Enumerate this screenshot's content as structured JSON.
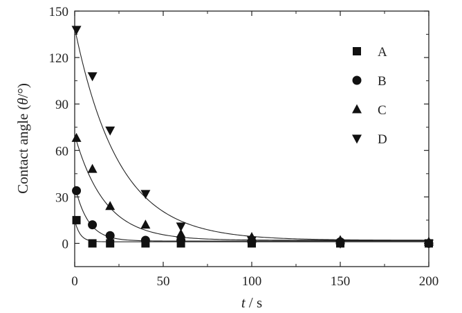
{
  "chart_data": {
    "type": "scatter",
    "title": "",
    "xlabel_italic": "t",
    "xlabel_unit": " / s",
    "ylabel_text": "Contact angle (",
    "ylabel_italic": "θ",
    "ylabel_unit": "/°)",
    "xlim": [
      0,
      200
    ],
    "ylim": [
      -15,
      150
    ],
    "xticks": [
      0,
      50,
      100,
      150,
      200
    ],
    "yticks": [
      0,
      30,
      60,
      90,
      120,
      150
    ],
    "grid": false,
    "legend_position": "top-right",
    "series": [
      {
        "name": "A",
        "marker": "square",
        "points": [
          [
            1,
            15
          ],
          [
            10,
            0
          ],
          [
            20,
            0
          ],
          [
            40,
            0
          ],
          [
            60,
            0
          ],
          [
            100,
            0
          ],
          [
            150,
            0
          ],
          [
            200,
            0
          ]
        ],
        "fit": {
          "y0": 1,
          "A": 14,
          "tau": 3
        }
      },
      {
        "name": "B",
        "marker": "circle",
        "points": [
          [
            1,
            34
          ],
          [
            10,
            12
          ],
          [
            20,
            5
          ],
          [
            40,
            2
          ],
          [
            60,
            2
          ],
          [
            100,
            1
          ],
          [
            150,
            1
          ],
          [
            200,
            0
          ]
        ],
        "fit": {
          "y0": 1.5,
          "A": 36,
          "tau": 7.5
        }
      },
      {
        "name": "C",
        "marker": "triangle-up",
        "points": [
          [
            1,
            68
          ],
          [
            10,
            48
          ],
          [
            20,
            24
          ],
          [
            40,
            12
          ],
          [
            60,
            6
          ],
          [
            100,
            4
          ],
          [
            150,
            2
          ],
          [
            200,
            1
          ]
        ],
        "fit": {
          "y0": 2,
          "A": 68,
          "tau": 17
        }
      },
      {
        "name": "D",
        "marker": "triangle-down",
        "points": [
          [
            1,
            138
          ],
          [
            10,
            108
          ],
          [
            20,
            73
          ],
          [
            40,
            32
          ],
          [
            60,
            11
          ],
          [
            100,
            2
          ],
          [
            150,
            0
          ],
          [
            200,
            0
          ]
        ],
        "fit": {
          "y0": 2,
          "A": 137,
          "tau": 25
        }
      }
    ]
  }
}
